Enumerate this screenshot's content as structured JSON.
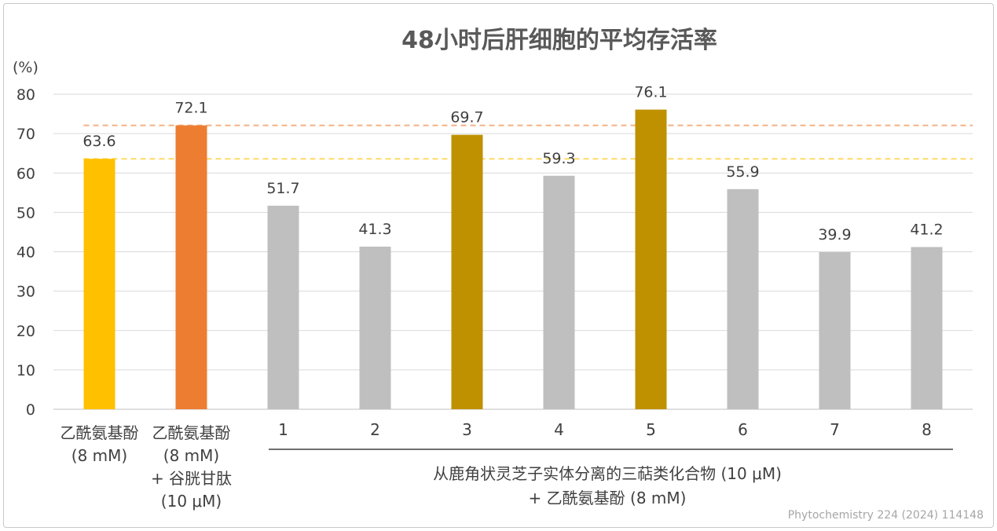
{
  "chart_data": {
    "type": "bar",
    "title": "48小时后肝细胞的平均存活率",
    "ylabel": "(%)",
    "ylim": [
      0,
      80
    ],
    "yticks": [
      0,
      10,
      20,
      30,
      40,
      50,
      60,
      70,
      80
    ],
    "grid": true,
    "categories": [
      "乙酰氨基酚 (8 mM)",
      "乙酰氨基酚 (8 mM) + 谷胱甘肽 (10 μM)",
      "1",
      "2",
      "3",
      "4",
      "5",
      "6",
      "7",
      "8"
    ],
    "values": [
      63.6,
      72.1,
      51.7,
      41.3,
      69.7,
      59.3,
      76.1,
      55.9,
      39.9,
      41.2
    ],
    "colors": [
      "#FFC000",
      "#ED7D31",
      "#BFBFBF",
      "#BFBFBF",
      "#BF9000",
      "#BFBFBF",
      "#BF9000",
      "#BFBFBF",
      "#BFBFBF",
      "#BFBFBF"
    ],
    "reference_lines": [
      {
        "value": 72.1,
        "color": "#F4B183",
        "style": "dashed"
      },
      {
        "value": 63.6,
        "color": "#FFD966",
        "style": "dashed"
      }
    ],
    "category_text": {
      "control1": [
        "乙酰氨基酚",
        "(8 mM)"
      ],
      "control2": [
        "乙酰氨基酚",
        "(8 mM)",
        "+ 谷胱甘肽",
        "(10 μM)"
      ],
      "group_label": [
        "从鹿角状灵芝子实体分离的三萜类化合物 (10 μM)",
        "+ 乙酰氨基酚 (8 mM)"
      ]
    }
  },
  "credit": "Phytochemistry 224 (2024) 114148"
}
